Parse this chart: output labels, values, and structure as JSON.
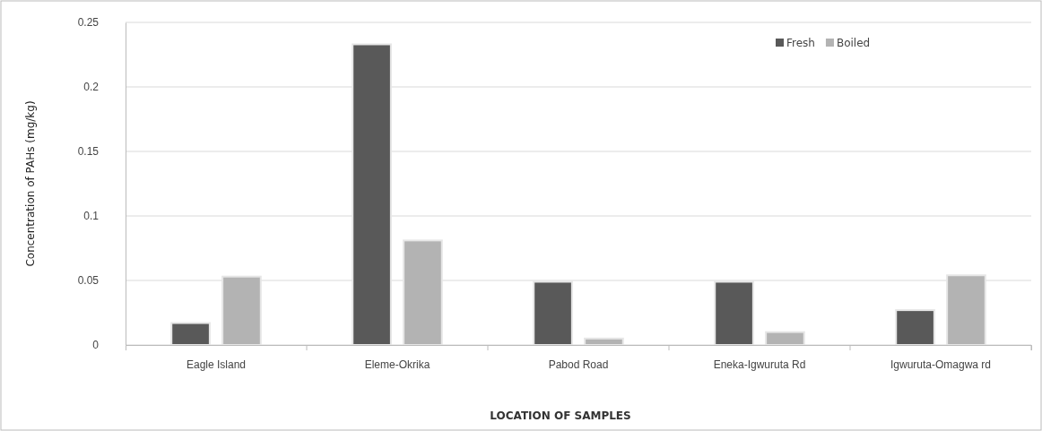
{
  "chart_data": {
    "type": "bar",
    "xlabel": "LOCATION OF SAMPLES",
    "ylabel": "Concentration of PAHs (mg/kg)",
    "categories": [
      "Eagle Island",
      "Eleme-Okrika",
      "Pabod Road",
      "Eneka-Igwuruta Rd",
      "Igwuruta-Omagwa rd"
    ],
    "series": [
      {
        "name": "Fresh",
        "color": "#595959",
        "values": [
          0.017,
          0.233,
          0.049,
          0.049,
          0.027
        ]
      },
      {
        "name": "Boiled",
        "color": "#b3b3b3",
        "values": [
          0.053,
          0.081,
          0.005,
          0.01,
          0.054
        ]
      }
    ],
    "ylim": [
      0,
      0.25
    ],
    "yticks": [
      0,
      0.05,
      0.1,
      0.15,
      0.2,
      0.25
    ],
    "grid": "y",
    "legend": "top right"
  }
}
